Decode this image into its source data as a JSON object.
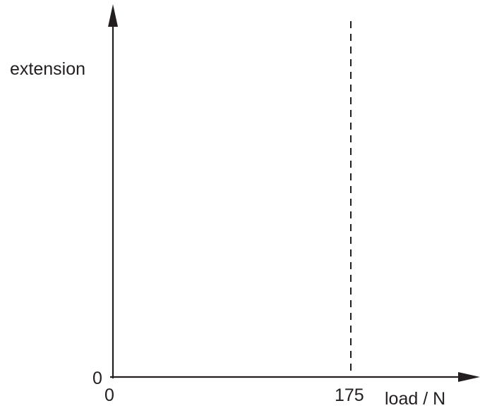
{
  "diagram": {
    "y_axis_label": "extension",
    "x_axis_label": "load / N",
    "origin_x_label": "0",
    "origin_y_label": "0",
    "marked_x_label": "175",
    "marked_x_value": 175,
    "line_color": "#231f20",
    "marker_line_style": "dashed"
  }
}
